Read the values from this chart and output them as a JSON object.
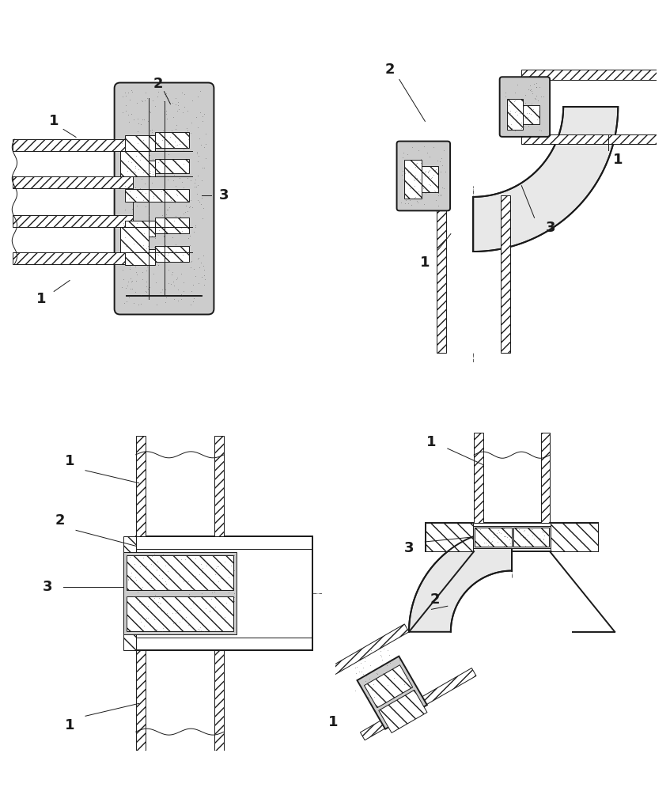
{
  "bg_color": "#ffffff",
  "line_color": "#1a1a1a",
  "label_fontsize": 13,
  "label_fontweight": "bold",
  "fig_width": 8.47,
  "fig_height": 10.0
}
